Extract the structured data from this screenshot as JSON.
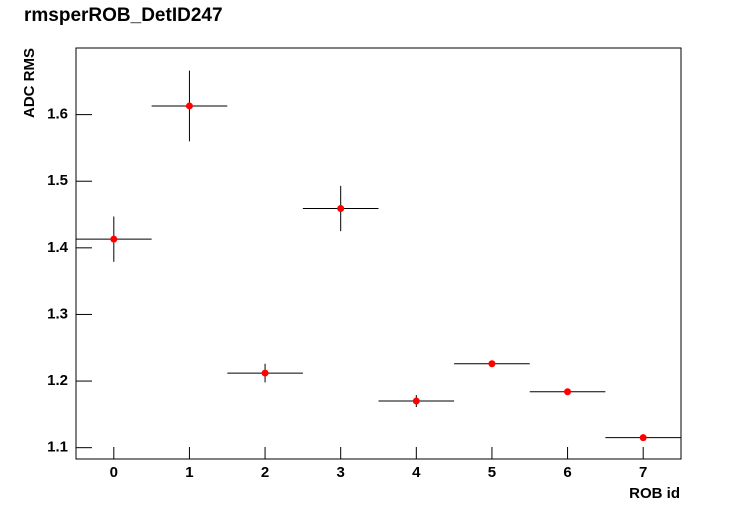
{
  "chart_data": {
    "type": "scatter",
    "title": "rmsperROB_DetID247",
    "x_label": "ROB id",
    "y_label": "ADC RMS",
    "x": [
      0,
      1,
      2,
      3,
      4,
      5,
      6,
      7
    ],
    "x_err": [
      0.5,
      0.5,
      0.5,
      0.5,
      0.5,
      0.5,
      0.5,
      0.5
    ],
    "values": [
      1.413,
      1.613,
      1.212,
      1.459,
      1.17,
      1.226,
      1.184,
      1.115
    ],
    "y_err": [
      0.034,
      0.053,
      0.014,
      0.034,
      0.009,
      0.003,
      0.002,
      0.002
    ],
    "color": "#ff0000",
    "xlim": [
      -0.5,
      7.5
    ],
    "ylim": [
      1.083,
      1.7
    ],
    "xticks": [
      0,
      1,
      2,
      3,
      4,
      5,
      6,
      7
    ],
    "yticks": [
      1.1,
      1.2,
      1.3,
      1.4,
      1.5,
      1.6
    ]
  }
}
